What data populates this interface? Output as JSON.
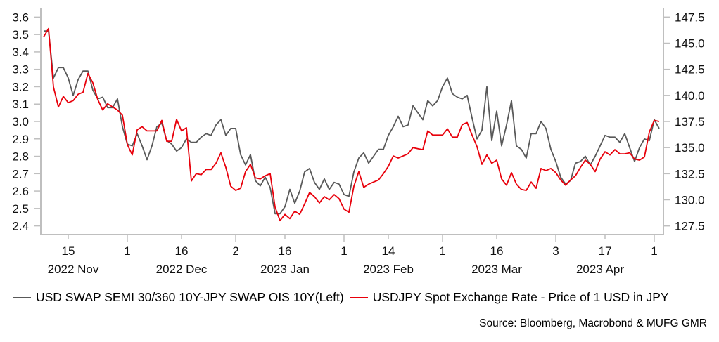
{
  "chart_data": {
    "type": "line",
    "title": "",
    "xlabel": "",
    "ylabel_left": "",
    "ylabel_right": "",
    "grid": false,
    "legend_position": "bottom",
    "x_range": [
      "2022-11-08",
      "2023-05-03"
    ],
    "x_ticks": [
      {
        "label": "15",
        "date": "2022-11-15",
        "major": false
      },
      {
        "label": "1",
        "date": "2022-12-01",
        "major": true
      },
      {
        "label": "16",
        "date": "2022-12-16",
        "major": false
      },
      {
        "label": "2",
        "date": "2023-01-02",
        "major": true
      },
      {
        "label": "16",
        "date": "2023-01-16",
        "major": false
      },
      {
        "label": "1",
        "date": "2023-02-01",
        "major": true
      },
      {
        "label": "14",
        "date": "2023-02-14",
        "major": false
      },
      {
        "label": "1",
        "date": "2023-03-01",
        "major": true
      },
      {
        "label": "16",
        "date": "2023-03-16",
        "major": false
      },
      {
        "label": "3",
        "date": "2023-04-03",
        "major": true
      },
      {
        "label": "17",
        "date": "2023-04-17",
        "major": false
      },
      {
        "label": "1",
        "date": "2023-05-01",
        "major": true
      }
    ],
    "x_group_labels": [
      {
        "label": "2022 Nov",
        "date": "2022-11-16"
      },
      {
        "label": "2022 Dec",
        "date": "2022-12-16"
      },
      {
        "label": "2023 Jan",
        "date": "2023-01-16"
      },
      {
        "label": "2023 Feb",
        "date": "2023-02-14"
      },
      {
        "label": "2023 Mar",
        "date": "2023-03-16"
      },
      {
        "label": "2023 Apr",
        "date": "2023-04-16"
      }
    ],
    "y_left": {
      "range": [
        2.35,
        3.65
      ],
      "ticks": [
        2.4,
        2.5,
        2.6,
        2.7,
        2.8,
        2.9,
        3.0,
        3.1,
        3.2,
        3.3,
        3.4,
        3.5,
        3.6
      ],
      "tick_decimals": 1
    },
    "y_right": {
      "range": [
        126.67,
        148.33
      ],
      "ticks": [
        127.5,
        130.0,
        132.5,
        135.0,
        137.5,
        140.0,
        142.5,
        145.0,
        147.5
      ],
      "tick_decimals": 1
    },
    "series": [
      {
        "name": "USD SWAP SEMI 30/360 10Y-JPY SWAP OIS 10Y(Left)",
        "axis": "left",
        "color": "#595959",
        "values": [
          3.52,
          3.52,
          3.25,
          3.31,
          3.31,
          3.25,
          3.15,
          3.24,
          3.29,
          3.29,
          3.18,
          3.13,
          3.14,
          3.08,
          3.08,
          3.13,
          2.97,
          2.87,
          2.86,
          2.93,
          2.86,
          2.78,
          2.86,
          2.97,
          2.99,
          2.89,
          2.87,
          2.83,
          2.85,
          2.9,
          2.88,
          2.88,
          2.91,
          2.93,
          2.92,
          2.98,
          3.01,
          2.92,
          2.96,
          2.96,
          2.81,
          2.75,
          2.81,
          2.66,
          2.63,
          2.68,
          2.62,
          2.47,
          2.47,
          2.51,
          2.61,
          2.53,
          2.6,
          2.71,
          2.73,
          2.65,
          2.61,
          2.67,
          2.61,
          2.65,
          2.64,
          2.58,
          2.57,
          2.71,
          2.79,
          2.82,
          2.76,
          2.8,
          2.84,
          2.84,
          2.92,
          2.97,
          3.03,
          2.97,
          2.98,
          3.09,
          3.05,
          3.01,
          3.12,
          3.09,
          3.12,
          3.2,
          3.25,
          3.16,
          3.14,
          3.13,
          3.15,
          3.02,
          2.9,
          2.95,
          3.2,
          2.89,
          3.06,
          2.86,
          2.98,
          3.12,
          2.86,
          2.84,
          2.79,
          2.93,
          2.93,
          3.0,
          2.96,
          2.84,
          2.77,
          2.68,
          2.64,
          2.66,
          2.76,
          2.77,
          2.8,
          2.75,
          2.8,
          2.86,
          2.92,
          2.91,
          2.91,
          2.88,
          2.93,
          2.85,
          2.77,
          2.85,
          2.9,
          2.89,
          3.01,
          2.96
        ]
      },
      {
        "name": "USDJPY Spot Exchange Rate - Price of 1 USD in JPY",
        "axis": "right",
        "color": "#e8000b",
        "values": [
          145.6,
          146.4,
          140.8,
          138.9,
          139.9,
          139.3,
          139.5,
          140.1,
          140.3,
          142.1,
          141.2,
          139.6,
          138.6,
          139.2,
          138.9,
          138.6,
          138.1,
          135.3,
          134.3,
          136.7,
          137.0,
          136.6,
          136.6,
          136.6,
          137.6,
          135.6,
          135.6,
          137.7,
          136.6,
          136.9,
          131.8,
          132.5,
          132.4,
          132.9,
          132.9,
          133.5,
          134.5,
          133.1,
          131.3,
          130.9,
          131.1,
          132.7,
          133.4,
          132.1,
          132.0,
          132.3,
          132.5,
          129.3,
          128.0,
          128.6,
          128.2,
          128.9,
          128.6,
          129.6,
          130.7,
          130.3,
          129.7,
          130.3,
          130.0,
          130.5,
          130.1,
          129.1,
          128.8,
          131.3,
          132.7,
          131.2,
          131.5,
          131.7,
          131.9,
          132.5,
          133.2,
          134.2,
          134.0,
          134.2,
          134.4,
          135.0,
          134.9,
          134.8,
          136.6,
          136.2,
          136.2,
          136.2,
          136.8,
          136.0,
          136.0,
          137.2,
          137.4,
          136.2,
          135.1,
          133.4,
          134.3,
          133.5,
          133.8,
          132.0,
          131.4,
          132.6,
          131.5,
          131.0,
          130.9,
          131.7,
          131.1,
          133.0,
          132.8,
          133.0,
          132.6,
          131.9,
          131.4,
          131.9,
          132.3,
          133.1,
          133.8,
          133.4,
          132.7,
          133.9,
          134.6,
          134.3,
          134.8,
          134.4,
          134.4,
          134.5,
          133.9,
          133.8,
          134.1,
          136.5,
          137.6,
          137.5
        ]
      }
    ]
  },
  "legend": {
    "items": [
      {
        "label": "USD SWAP SEMI 30/360 10Y-JPY SWAP OIS 10Y(Left)",
        "color": "#595959"
      },
      {
        "label": "USDJPY Spot Exchange Rate - Price of 1 USD in JPY",
        "color": "#e8000b"
      }
    ]
  },
  "source": "Source: Bloomberg, Macrobond & MUFG GMR"
}
